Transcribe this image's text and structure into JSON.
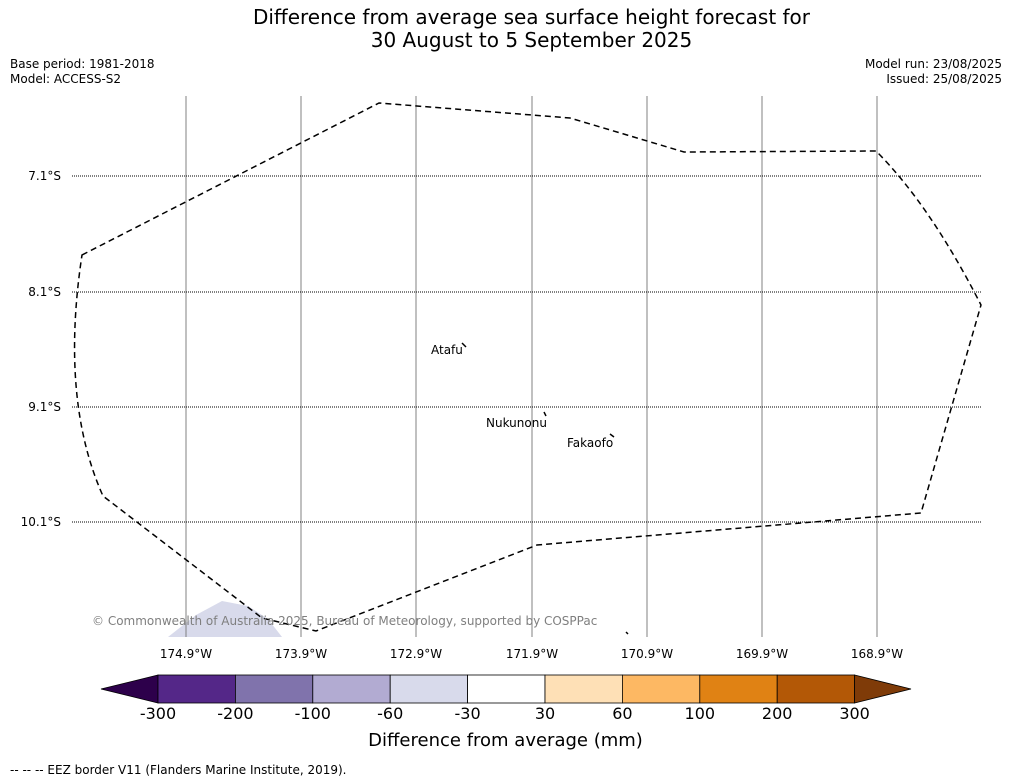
{
  "title": {
    "line1": "Difference from average sea surface height forecast for",
    "line2": "30 August to 5 September 2025"
  },
  "meta_left": {
    "base_period": "Base period: 1981-2018",
    "model": "Model: ACCESS-S2"
  },
  "meta_right": {
    "model_run": "Model run: 23/08/2025",
    "issued": "Issued: 25/08/2025"
  },
  "map": {
    "latitudes": [
      "7.1°S",
      "8.1°S",
      "9.1°S",
      "10.1°S"
    ],
    "longitudes": [
      "174.9°W",
      "173.9°W",
      "172.9°W",
      "171.9°W",
      "170.9°W",
      "169.9°W",
      "168.9°W"
    ],
    "places": [
      {
        "name": "Atafu"
      },
      {
        "name": "Nukunonu"
      },
      {
        "name": "Fakaofo"
      }
    ],
    "copyright": "© Commonwealth of Australia 2025, Bureau of Meteorology, supported by COSPPac",
    "anomaly_patch_category": "-60 to -30",
    "border_style": "dashed"
  },
  "colorbar": {
    "title": "Difference from average (mm)",
    "tick_labels": [
      "-300",
      "-200",
      "-100",
      "-60",
      "-30",
      "30",
      "60",
      "100",
      "200",
      "300"
    ],
    "colors": [
      "#2d004b",
      "#542788",
      "#8073ac",
      "#b2abd2",
      "#d8daeb",
      "#ffffff",
      "#fee0b6",
      "#fdb863",
      "#e08214",
      "#b35806",
      "#7f3b08"
    ]
  },
  "footnote": "--  --  -- EEZ border V11 (Flanders Marine Institute, 2019)."
}
